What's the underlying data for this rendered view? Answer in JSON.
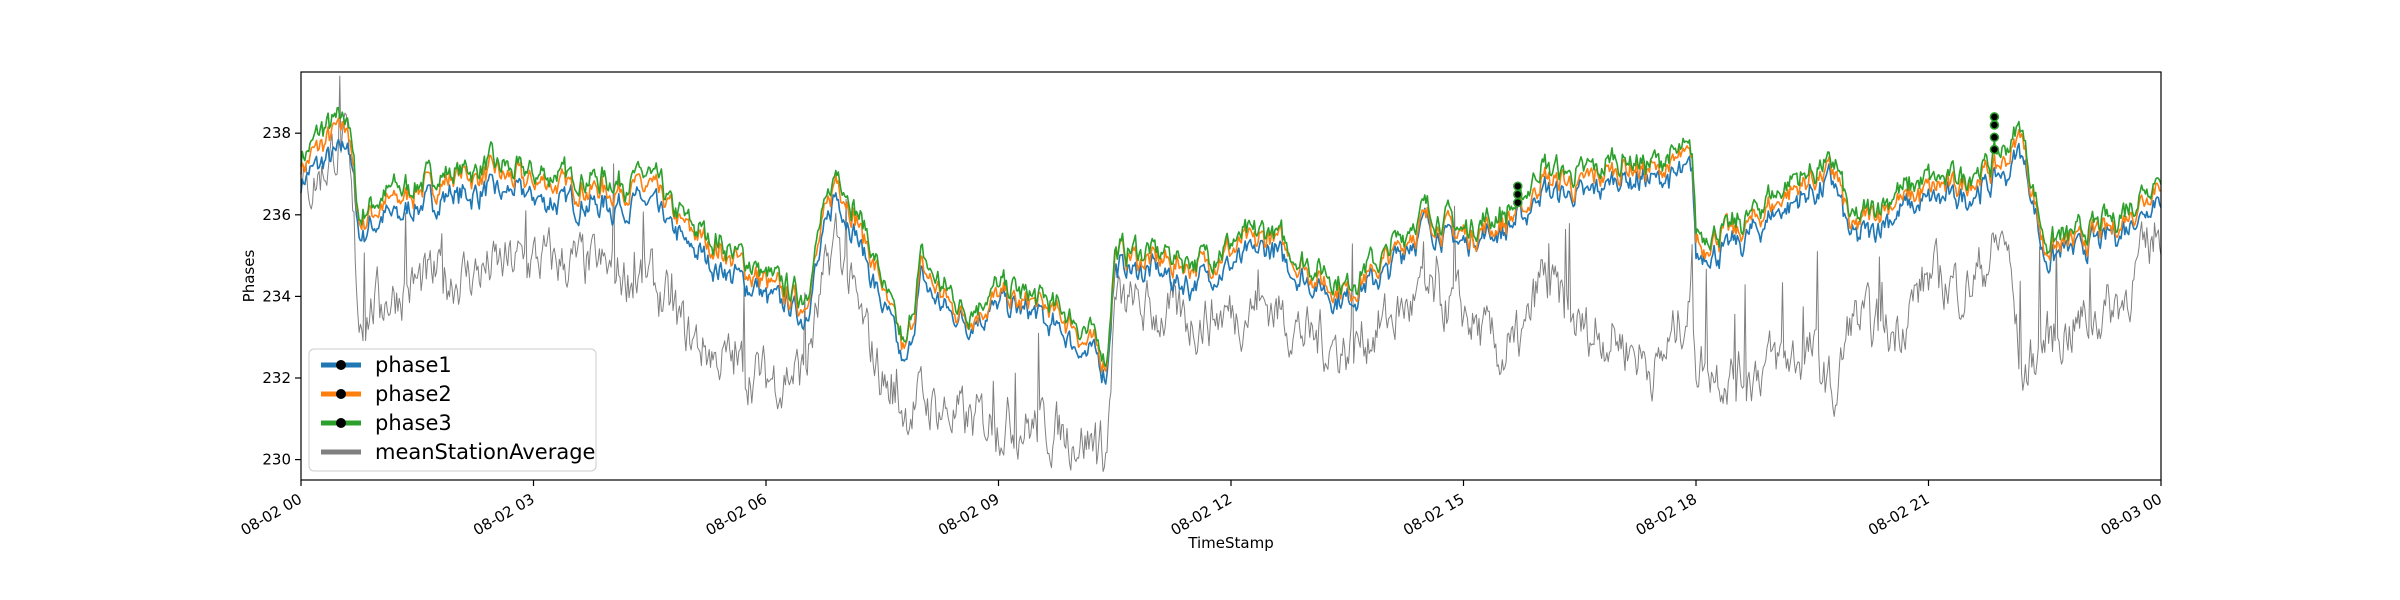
{
  "chart_data": {
    "type": "line",
    "xlabel": "TimeStamp",
    "ylabel": "Phases",
    "xlim": [
      "08-02 00",
      "08-03 00"
    ],
    "ylim": [
      229.5,
      239.5
    ],
    "grid": false,
    "legend_position": "lower-left",
    "x_ticks": [
      "08-02 00",
      "08-02 03",
      "08-02 06",
      "08-02 09",
      "08-02 12",
      "08-02 15",
      "08-02 18",
      "08-02 21",
      "08-03 00"
    ],
    "y_ticks": [
      230,
      232,
      234,
      236,
      238
    ],
    "x_hours": [
      0,
      0.25,
      0.5,
      0.6,
      0.75,
      1,
      1.5,
      2,
      2.5,
      3,
      3.5,
      4,
      4.5,
      5,
      5.5,
      6,
      6.5,
      6.9,
      7.2,
      7.5,
      7.8,
      8,
      8.3,
      8.6,
      9,
      9.5,
      10,
      10.4,
      10.5,
      11,
      11.5,
      12,
      12.5,
      13,
      13.5,
      14,
      14.5,
      15,
      15.5,
      15.8,
      16,
      16.5,
      17,
      17.5,
      17.95,
      18,
      18.5,
      19,
      19.5,
      19.8,
      20,
      20.5,
      21,
      21.5,
      22,
      22.2,
      22.5,
      23,
      23.5,
      24
    ],
    "series": [
      {
        "name": "phase1",
        "color": "#1f77b4",
        "values": [
          236.8,
          237.2,
          237.6,
          237.9,
          235.5,
          235.8,
          236.2,
          236.5,
          236.6,
          236.4,
          236.3,
          236.2,
          236.3,
          235.2,
          234.6,
          234.0,
          233.5,
          236.6,
          235.4,
          233.8,
          232.2,
          234.4,
          233.7,
          233.3,
          233.8,
          233.5,
          232.9,
          232.2,
          234.7,
          234.6,
          234.3,
          234.8,
          235.2,
          234.3,
          233.9,
          234.6,
          235.7,
          235.3,
          235.6,
          236.0,
          236.6,
          236.4,
          236.9,
          236.8,
          237.1,
          235.0,
          235.2,
          236.0,
          236.6,
          236.8,
          235.3,
          236.0,
          236.3,
          236.5,
          237.0,
          237.6,
          234.9,
          235.2,
          235.6,
          236.6
        ]
      },
      {
        "name": "phase2",
        "color": "#ff7f0e",
        "values": [
          237.2,
          237.7,
          238.0,
          238.3,
          235.8,
          236.2,
          236.6,
          236.9,
          237.0,
          236.8,
          236.7,
          236.6,
          236.7,
          235.6,
          235.0,
          234.3,
          233.8,
          237.0,
          235.8,
          234.2,
          232.5,
          234.7,
          234.0,
          233.5,
          234.0,
          233.8,
          233.2,
          232.4,
          235.0,
          234.9,
          234.7,
          235.1,
          235.5,
          234.6,
          234.1,
          234.9,
          235.9,
          235.5,
          235.8,
          236.2,
          236.9,
          236.7,
          237.2,
          237.1,
          237.4,
          235.3,
          235.5,
          236.3,
          236.9,
          237.1,
          235.6,
          236.3,
          236.6,
          236.8,
          237.3,
          238.0,
          235.1,
          235.4,
          235.8,
          236.9
        ]
      },
      {
        "name": "phase3",
        "color": "#2ca02c",
        "values": [
          237.4,
          238.0,
          238.3,
          238.6,
          236.0,
          236.4,
          236.8,
          237.1,
          237.2,
          237.0,
          236.9,
          236.8,
          236.9,
          235.8,
          235.2,
          234.5,
          234.0,
          237.2,
          236.0,
          234.4,
          232.7,
          234.9,
          234.2,
          233.7,
          234.2,
          234.0,
          233.4,
          232.6,
          235.2,
          235.1,
          234.9,
          235.3,
          235.7,
          234.8,
          234.3,
          235.1,
          236.1,
          235.7,
          236.0,
          236.5,
          237.2,
          237.0,
          237.4,
          237.3,
          237.6,
          235.5,
          235.7,
          236.5,
          237.1,
          237.3,
          235.8,
          236.5,
          236.8,
          237.0,
          237.6,
          238.2,
          235.3,
          235.6,
          236.0,
          237.1
        ]
      },
      {
        "name": "meanStationAverage",
        "color": "#808080",
        "values": [
          236.5,
          237.0,
          237.8,
          237.5,
          233.5,
          233.9,
          234.3,
          234.5,
          234.7,
          234.9,
          234.8,
          234.6,
          234.4,
          233.0,
          232.4,
          232.0,
          232.2,
          235.5,
          233.5,
          232.0,
          231.2,
          231.5,
          231.2,
          230.9,
          231.0,
          230.8,
          230.6,
          230.2,
          233.8,
          233.6,
          233.4,
          233.6,
          233.8,
          233.0,
          232.7,
          233.4,
          234.0,
          233.6,
          232.5,
          233.0,
          234.5,
          233.2,
          233.0,
          232.2,
          234.0,
          232.5,
          232.0,
          232.4,
          232.6,
          231.5,
          233.5,
          233.0,
          234.5,
          234.2,
          235.5,
          232.0,
          232.9,
          233.4,
          233.9,
          235.8
        ]
      }
    ],
    "marker_clusters": [
      {
        "series": "phase3",
        "x_hour": 15.7,
        "values": [
          236.3,
          236.5,
          236.7
        ]
      },
      {
        "series": "phase3",
        "x_hour": 21.85,
        "values": [
          237.6,
          237.9,
          238.2,
          238.4
        ]
      }
    ]
  }
}
